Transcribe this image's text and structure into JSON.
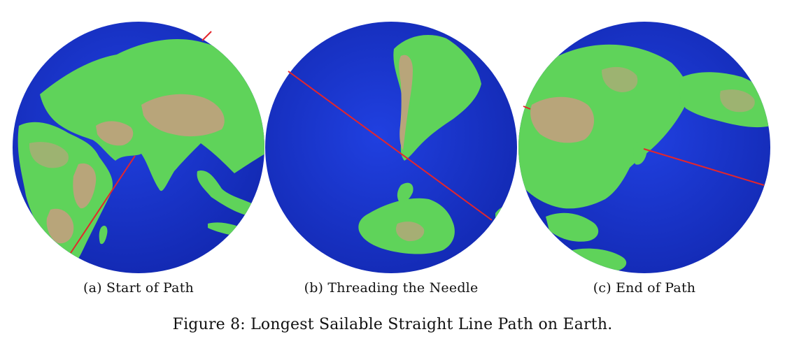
{
  "figure": {
    "caption": "Figure 8: Longest Sailable Straight Line Path on Earth.",
    "panels": [
      {
        "label": "(a) Start of Path"
      },
      {
        "label": "(b) Threading the Needle"
      },
      {
        "label": "(c) End of Path"
      }
    ]
  },
  "colors": {
    "ocean": "#1a33cc",
    "lowland": "#5fd35a",
    "highland": "#b8a57a",
    "path": "#e4262c"
  }
}
